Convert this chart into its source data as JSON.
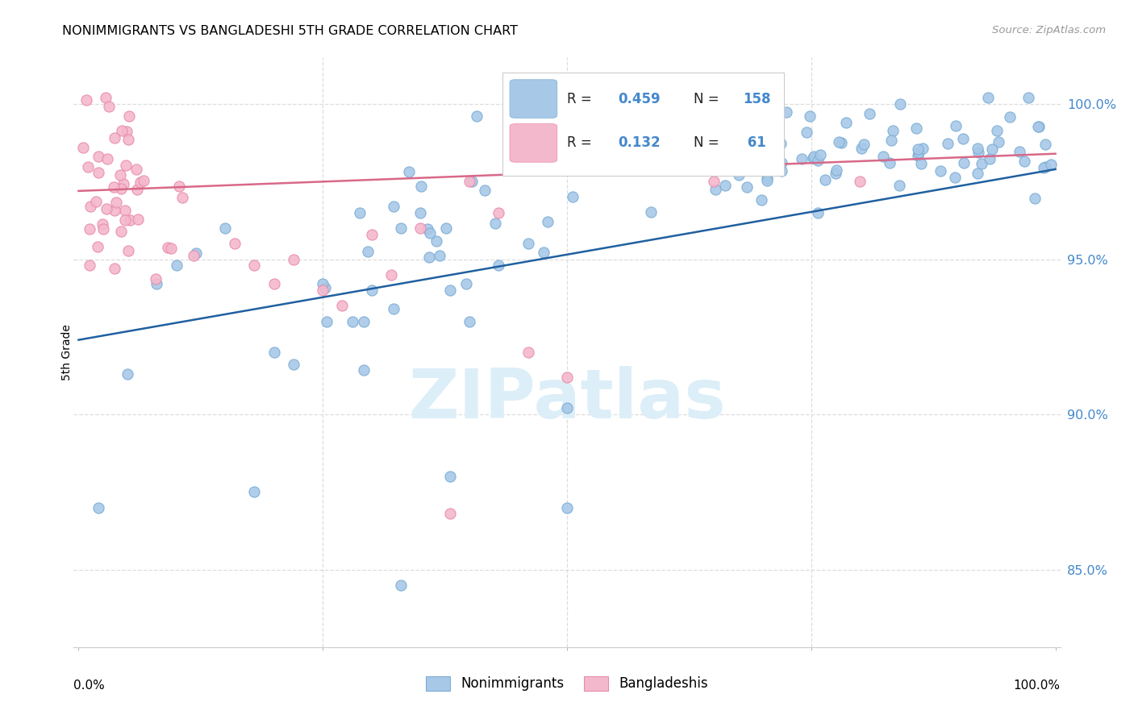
{
  "title": "NONIMMIGRANTS VS BANGLADESHI 5TH GRADE CORRELATION CHART",
  "source": "Source: ZipAtlas.com",
  "ylabel": "5th Grade",
  "legend_label1": "Nonimmigrants",
  "legend_label2": "Bangladeshis",
  "R1": "0.459",
  "N1": "158",
  "R2": "0.132",
  "N2": " 61",
  "blue_color": "#a8c8e8",
  "blue_edge_color": "#7aadd4",
  "pink_color": "#f4b8cc",
  "pink_edge_color": "#e88aaa",
  "blue_line_color": "#2060a0",
  "pink_line_color": "#d86888",
  "watermark_color": "#dceef8",
  "ytick_color": "#4488cc",
  "background": "#ffffff",
  "grid_color": "#dddddd",
  "xlim": [
    0.0,
    1.0
  ],
  "ylim": [
    0.825,
    1.015
  ],
  "ytick_vals": [
    0.85,
    0.9,
    0.95,
    1.0
  ],
  "ytick_labels": [
    "85.0%",
    "90.0%",
    "95.0%",
    "100.0%"
  ]
}
